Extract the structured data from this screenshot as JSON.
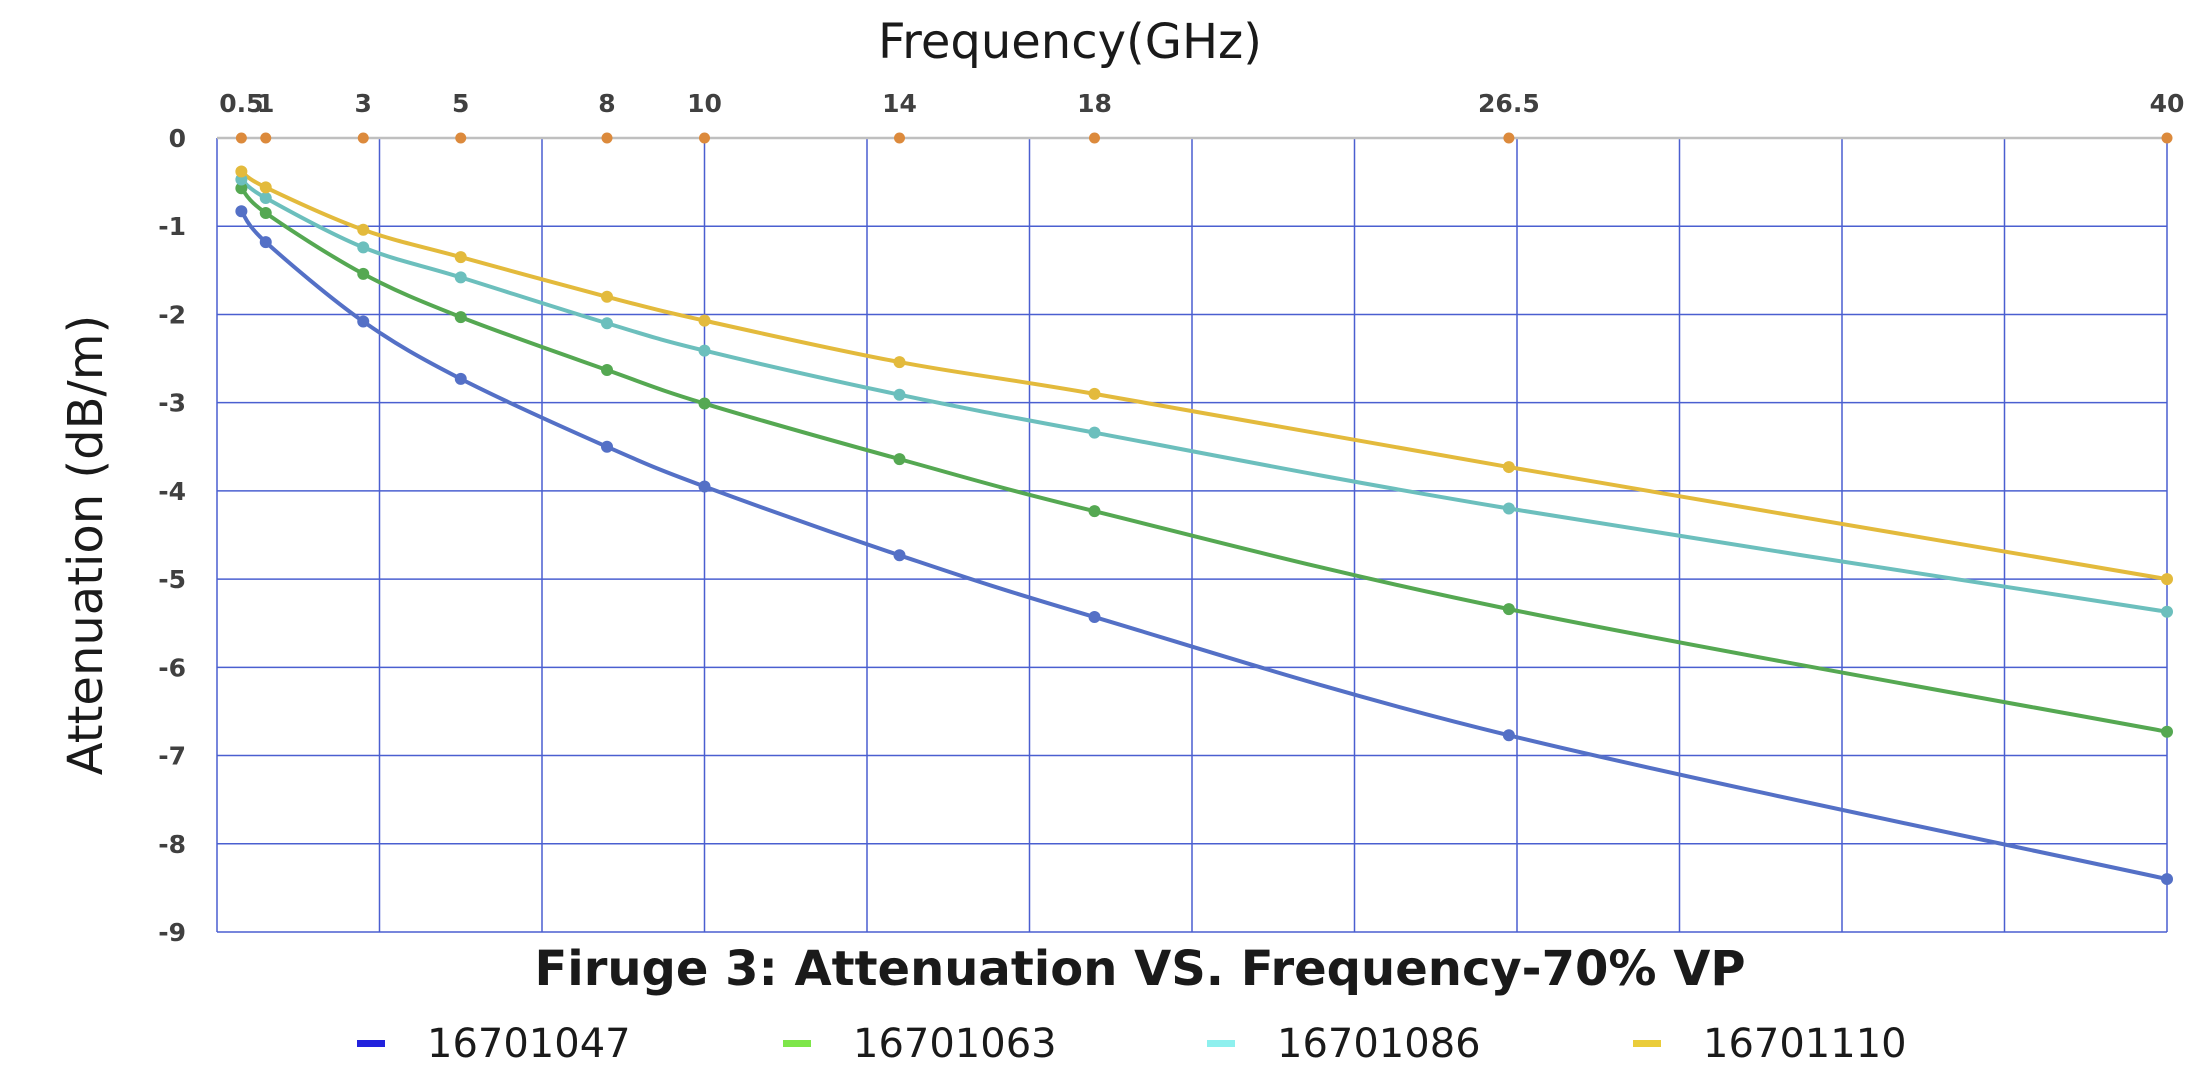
{
  "chart_data": {
    "type": "line",
    "title": "Firuge 3: Attenuation VS. Frequency-70% VP",
    "xlabel": "Frequency(GHz)",
    "ylabel": "Attenuation (dB/m)",
    "x_axis_position": "top",
    "x_ticks": [
      {
        "label": "0.5",
        "value": 0.5
      },
      {
        "label": "1",
        "value": 1
      },
      {
        "label": "3",
        "value": 3
      },
      {
        "label": "5",
        "value": 5
      },
      {
        "label": "8",
        "value": 8
      },
      {
        "label": "10",
        "value": 10
      },
      {
        "label": "14",
        "value": 14
      },
      {
        "label": "18",
        "value": 18
      },
      {
        "label": "26.5",
        "value": 26.5
      },
      {
        "label": "40",
        "value": 40
      }
    ],
    "y_ticks": [
      "0",
      "-1",
      "-2",
      "-3",
      "-4",
      "-5",
      "-6",
      "-7",
      "-8",
      "-9"
    ],
    "ylim": [
      -9,
      0
    ],
    "grid": true,
    "legend_position": "bottom",
    "x": [
      0.5,
      1,
      3,
      5,
      8,
      10,
      14,
      18,
      26.5,
      40
    ],
    "series": [
      {
        "name": "16701047",
        "color": "#5470c6",
        "legend_color": "#2222dd",
        "values": [
          -0.83,
          -1.18,
          -2.08,
          -2.73,
          -3.5,
          -3.95,
          -4.73,
          -5.43,
          -6.77,
          -8.4
        ]
      },
      {
        "name": "16701063",
        "color": "#55a852",
        "legend_color": "#7ee64a",
        "values": [
          -0.57,
          -0.85,
          -1.54,
          -2.03,
          -2.63,
          -3.01,
          -3.64,
          -4.23,
          -5.34,
          -6.73
        ]
      },
      {
        "name": "16701086",
        "color": "#6cbfbd",
        "legend_color": "#8ef0ee",
        "values": [
          -0.47,
          -0.68,
          -1.24,
          -1.58,
          -2.1,
          -2.41,
          -2.91,
          -3.34,
          -4.2,
          -5.37
        ]
      },
      {
        "name": "16701110",
        "color": "#e3ba3c",
        "legend_color": "#eacc3a",
        "values": [
          -0.38,
          -0.56,
          -1.04,
          -1.35,
          -1.8,
          -2.07,
          -2.54,
          -2.9,
          -3.73,
          -5.0
        ]
      }
    ],
    "zero_markers_color": "#dc8a3c",
    "axis_line_color": "#bfbfbf",
    "grid_color": "#4a5fd0"
  }
}
